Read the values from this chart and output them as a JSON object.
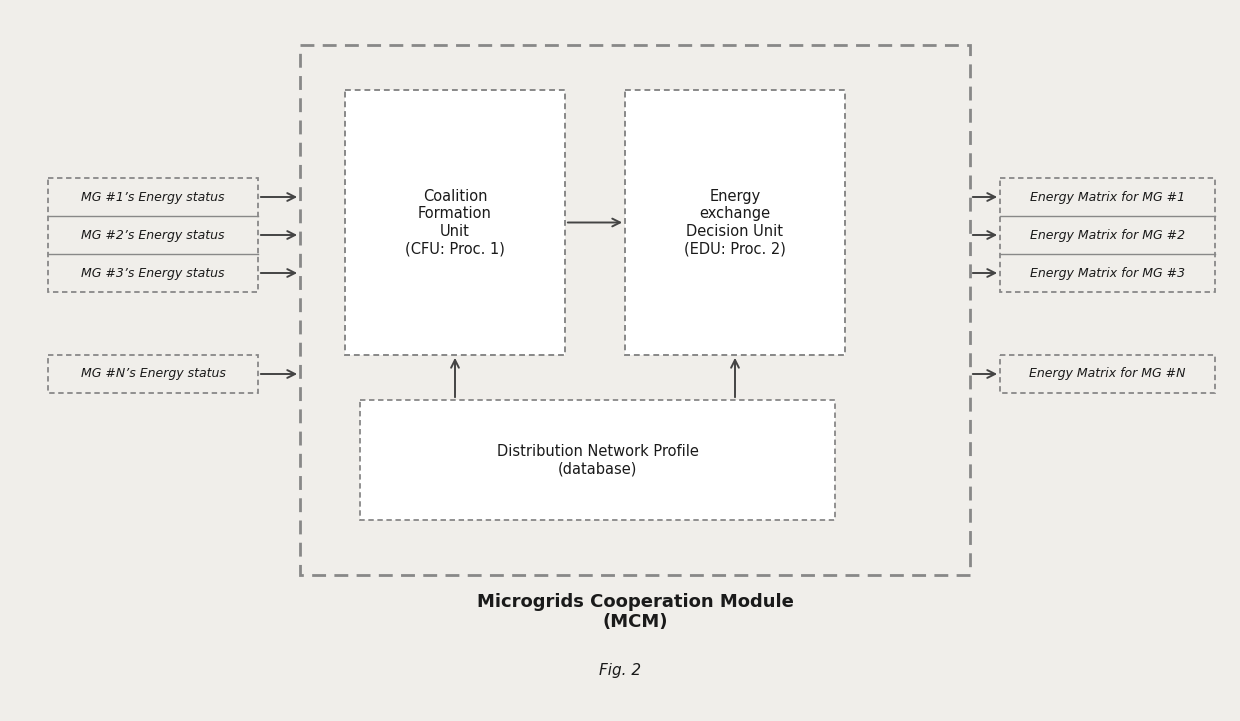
{
  "background_color": "#f0eeea",
  "fig_caption": "Fig. 2",
  "mcm_label_line1": "Microgrids Cooperation Module",
  "mcm_label_line2": "(MCM)",
  "input_boxes": [
    "MG #1’s Energy status",
    "MG #2’s Energy status",
    "MG #3’s Energy status"
  ],
  "input_box_n": "MG #N’s Energy status",
  "cfu_label": "Coalition\nFormation\nUnit\n(CFU: Proc. 1)",
  "edu_label": "Energy\nexchange\nDecision Unit\n(EDU: Proc. 2)",
  "db_label": "Distribution Network Profile\n(database)",
  "output_boxes": [
    "Energy Matrix for MG #1",
    "Energy Matrix for MG #2",
    "Energy Matrix for MG #3"
  ],
  "output_box_n": "Energy Matrix for MG #N",
  "box_edge_color": "#888888",
  "dashed_edge_color": "#888888",
  "arrow_color": "#444444",
  "font_color": "#1a1a1a",
  "font_size_small": 9,
  "font_size_main": 10.5,
  "font_size_caption": 11,
  "font_size_mcm": 13
}
